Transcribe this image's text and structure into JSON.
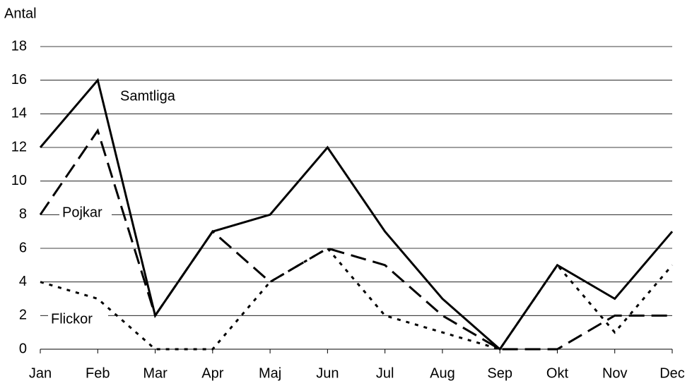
{
  "chart_data": {
    "type": "line",
    "y_label": "Antal",
    "categories": [
      "Jan",
      "Feb",
      "Mar",
      "Apr",
      "Maj",
      "Jun",
      "Jul",
      "Aug",
      "Sep",
      "Okt",
      "Nov",
      "Dec"
    ],
    "series": [
      {
        "name": "Samtliga",
        "color": "#000000",
        "dash": "solid",
        "values": [
          12,
          16,
          2,
          7,
          8,
          12,
          7,
          3,
          0,
          5,
          3,
          7
        ]
      },
      {
        "name": "Pojkar",
        "color": "#000000",
        "dash": "long-dash",
        "values": [
          8,
          13,
          2,
          7,
          4,
          6,
          5,
          2,
          0,
          0,
          2,
          2
        ]
      },
      {
        "name": "Flickor",
        "color": "#000000",
        "dash": "dotted",
        "values": [
          4,
          3,
          0,
          0,
          4,
          6,
          2,
          1,
          0,
          5,
          1,
          5
        ]
      }
    ],
    "ylim": [
      0,
      18
    ],
    "yticks": [
      0,
      2,
      4,
      6,
      8,
      10,
      12,
      14,
      16,
      18
    ],
    "grid": true
  }
}
